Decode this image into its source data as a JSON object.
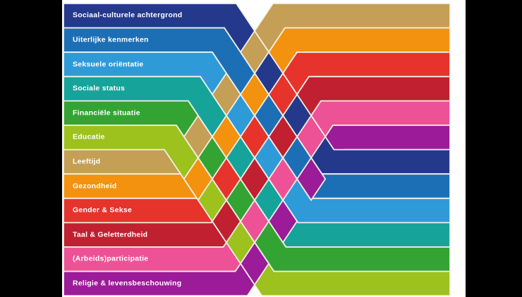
{
  "diagram": {
    "kind": "woven-ribbon-crossing-diagram",
    "bands": [
      {
        "id": "sociaal-culturele-achtergrond",
        "label": "Sociaal-culturele achtergrond",
        "color": "#24398c",
        "left_row": 1,
        "right_row": 7
      },
      {
        "id": "uiterlijke-kenmerken",
        "label": "Uiterlijke kenmerken",
        "color": "#1d6fb5",
        "left_row": 2,
        "right_row": 8
      },
      {
        "id": "seksuele-orientatie",
        "label": "Seksuele oriëntatie",
        "color": "#2e9bd8",
        "left_row": 3,
        "right_row": 9
      },
      {
        "id": "sociale-status",
        "label": "Sociale status",
        "color": "#16a39a",
        "left_row": 4,
        "right_row": 10
      },
      {
        "id": "financiele-situatie",
        "label": "Financiële situatie",
        "color": "#33a433",
        "left_row": 5,
        "right_row": 11
      },
      {
        "id": "educatie",
        "label": "Educatie",
        "color": "#9dc21d",
        "left_row": 6,
        "right_row": 12
      },
      {
        "id": "leeftijd",
        "label": "Leeftijd",
        "color": "#c49f55",
        "left_row": 7,
        "right_row": 1
      },
      {
        "id": "gezondheid",
        "label": "Gezondheid",
        "color": "#f2920e",
        "left_row": 8,
        "right_row": 2
      },
      {
        "id": "gender-sekse",
        "label": "Gender & Sekse",
        "color": "#e6332b",
        "left_row": 9,
        "right_row": 3
      },
      {
        "id": "taal-geletterdheid",
        "label": "Taal & Geletterdheid",
        "color": "#c02030",
        "left_row": 10,
        "right_row": 4
      },
      {
        "id": "arbeids-participatie",
        "label": "(Arbeids)participatie",
        "color": "#ee5296",
        "left_row": 11,
        "right_row": 5
      },
      {
        "id": "religie-levensbeschouwing",
        "label": "Religie & levensbeschouwing",
        "color": "#9c1b98",
        "left_row": 12,
        "right_row": 6
      }
    ],
    "style": {
      "label_color": "#ffffff",
      "outline_color": "#f2efe8",
      "panel_bg": "#ffffff",
      "letterbox_color": "#000000"
    }
  }
}
